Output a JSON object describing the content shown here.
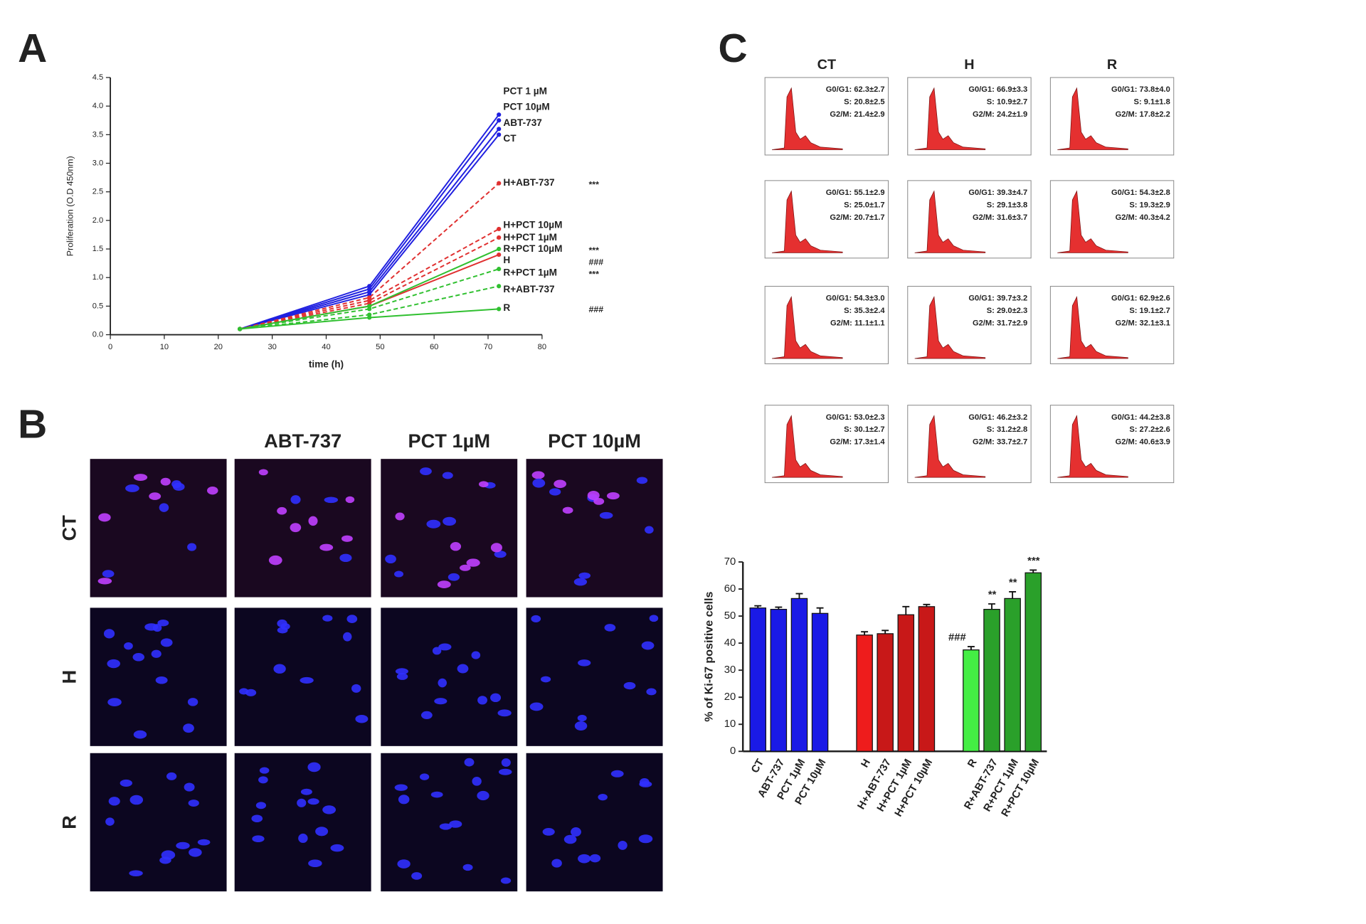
{
  "panels": {
    "a": "A",
    "b": "B",
    "c": "C"
  },
  "chart_data": [
    {
      "type": "line",
      "x_label": "time (h)",
      "y_label": "Proliferation (O.D 450nm)",
      "xlim": [
        0,
        80
      ],
      "xticks": [
        0,
        10,
        20,
        30,
        40,
        50,
        60,
        70,
        80
      ],
      "ylim": [
        0,
        4.5
      ],
      "yticks": [
        {
          "value": 0,
          "label": "0.0"
        },
        0.5,
        {
          "value": 1,
          "label": "1.0"
        },
        1.5,
        {
          "value": 2,
          "label": "2.0"
        },
        2.5,
        {
          "value": 3,
          "label": "3.0"
        },
        3.5,
        {
          "value": 4,
          "label": "4.0"
        },
        4.5
      ],
      "x": [
        24,
        48,
        72
      ],
      "series": [
        {
          "name": "PCT 1 µM",
          "color": "#2020e0",
          "dashed": false,
          "values": [
            0.1,
            0.85,
            3.85
          ]
        },
        {
          "name": "PCT 10µM",
          "color": "#2020e0",
          "dashed": false,
          "values": [
            0.1,
            0.8,
            3.75
          ]
        },
        {
          "name": "ABT-737",
          "color": "#2020e0",
          "dashed": false,
          "values": [
            0.1,
            0.75,
            3.6
          ]
        },
        {
          "name": "CT",
          "color": "#2020e0",
          "dashed": false,
          "values": [
            0.1,
            0.7,
            3.5
          ]
        },
        {
          "name": "H+ABT-737",
          "color": "#e03030",
          "dashed": true,
          "significance": "***",
          "values": [
            0.1,
            0.65,
            2.65
          ]
        },
        {
          "name": "H+PCT 10µM",
          "color": "#e03030",
          "dashed": true,
          "values": [
            0.1,
            0.6,
            1.85
          ]
        },
        {
          "name": "H+PCT 1µM",
          "color": "#e03030",
          "dashed": true,
          "values": [
            0.1,
            0.55,
            1.7
          ]
        },
        {
          "name": "H",
          "color": "#e03030",
          "dashed": false,
          "significance": "###",
          "values": [
            0.1,
            0.5,
            1.4
          ]
        },
        {
          "name": "R+PCT 10µM",
          "color": "#30c030",
          "dashed": false,
          "significance": "***",
          "values": [
            0.1,
            0.5,
            1.5
          ]
        },
        {
          "name": "R+PCT 1µM",
          "color": "#30c030",
          "dashed": true,
          "significance": "***",
          "values": [
            0.1,
            0.45,
            1.15
          ]
        },
        {
          "name": "R+ABT-737",
          "color": "#30c030",
          "dashed": true,
          "values": [
            0.1,
            0.35,
            0.85
          ]
        },
        {
          "name": "R",
          "color": "#30c030",
          "dashed": false,
          "significance": "###",
          "values": [
            0.1,
            0.3,
            0.45
          ]
        }
      ]
    },
    {
      "type": "bar",
      "y_label": "% of Ki-67 positive cells",
      "ylim": [
        0,
        70
      ],
      "yticks": [
        0,
        10,
        20,
        30,
        40,
        50,
        60,
        70
      ],
      "categories": [
        "CT",
        "ABT-737",
        "PCT 1µM",
        "PCT 10µM",
        "H",
        "H+ABT-737",
        "H+PCT 1µM",
        "H+PCT 10µM",
        "R",
        "R+ABT-737",
        "R+PCT 1µM",
        "R+PCT 10µM"
      ],
      "values": [
        53,
        52.5,
        56.5,
        51,
        43,
        43.5,
        50.5,
        53.5,
        37.5,
        52.5,
        56.5,
        66
      ],
      "errors": [
        0.8,
        0.8,
        1.8,
        2,
        1.2,
        1.2,
        3,
        0.8,
        1.2,
        2,
        2.5,
        1
      ],
      "colors": [
        "#1a1ae6",
        "#1a1ae6",
        "#1a1ae6",
        "#1a1ae6",
        "#ee1c1c",
        "#c81818",
        "#c81818",
        "#c81818",
        "#44ee44",
        "#2aa02a",
        "#2aa02a",
        "#2aa02a"
      ],
      "significance": [
        null,
        null,
        null,
        null,
        null,
        null,
        null,
        null,
        "###",
        "**",
        "**",
        "***"
      ]
    }
  ],
  "micrographs": {
    "columns": [
      "ABT-737",
      "PCT 1µM",
      "PCT 10µM"
    ],
    "rows": [
      "CT",
      "H",
      "R"
    ]
  },
  "cell_cycle": {
    "columns": [
      "CT",
      "H",
      "R"
    ],
    "rows": [
      [
        [
          "G0/G1: 62.3±2.7",
          "S: 20.8±2.5",
          "G2/M: 21.4±2.9"
        ],
        [
          "G0/G1: 66.9±3.3",
          "S: 10.9±2.7",
          "G2/M: 24.2±1.9"
        ],
        [
          "G0/G1: 73.8±4.0",
          "S: 9.1±1.8",
          "G2/M: 17.8±2.2"
        ]
      ],
      [
        [
          "G0/G1: 55.1±2.9",
          "S: 25.0±1.7",
          "G2/M: 20.7±1.7"
        ],
        [
          "G0/G1: 39.3±4.7",
          "S: 29.1±3.8",
          "G2/M: 31.6±3.7"
        ],
        [
          "G0/G1: 54.3±2.8",
          "S: 19.3±2.9",
          "G2/M: 40.3±4.2"
        ]
      ],
      [
        [
          "G0/G1: 54.3±3.0",
          "S: 35.3±2.4",
          "G2/M: 11.1±1.1"
        ],
        [
          "G0/G1: 39.7±3.2",
          "S: 29.0±2.3",
          "G2/M: 31.7±2.9"
        ],
        [
          "G0/G1: 62.9±2.6",
          "S: 19.1±2.7",
          "G2/M: 32.1±3.1"
        ]
      ],
      [
        [
          "G0/G1: 53.0±2.3",
          "S: 30.1±2.7",
          "G2/M: 17.3±1.4"
        ],
        [
          "G0/G1: 46.2±3.2",
          "S: 31.2±2.8",
          "G2/M: 33.7±2.7"
        ],
        [
          "G0/G1: 44.2±3.8",
          "S: 27.2±2.6",
          "G2/M: 40.6±3.9"
        ]
      ]
    ]
  }
}
